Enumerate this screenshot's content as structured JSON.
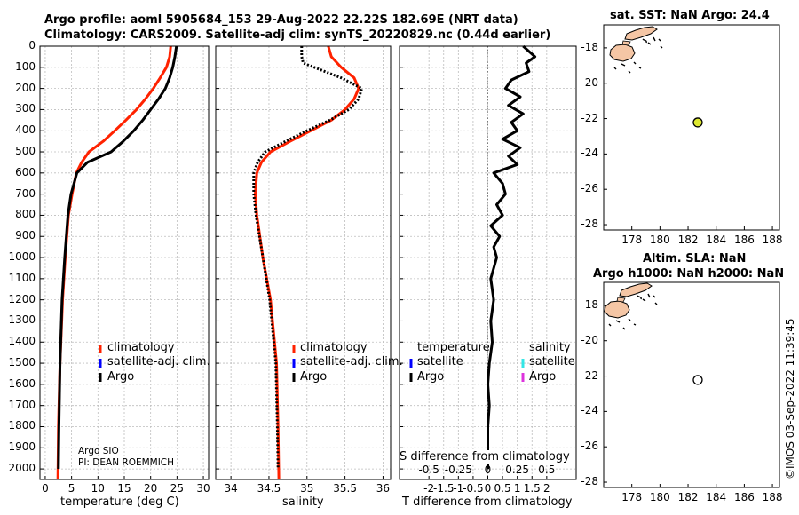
{
  "header": {
    "title_line1": "Argo profile: aoml 5905684_153 29-Aug-2022 22.22S 182.69E (NRT data)",
    "title_line2": "Climatology: CARS2009. Satellite-adj clim: synTS_20220829.nc (0.44d earlier)"
  },
  "colors": {
    "climatology": "#ff2200",
    "satellite": "#0000ff",
    "argo": "#000000",
    "sat_salinity": "#33e6e6",
    "argo_salinity": "#dd33dd",
    "land": "#f5c6a5",
    "sst_marker": "#dde830"
  },
  "depth_ticks": [
    "0",
    "100",
    "200",
    "300",
    "400",
    "500",
    "600",
    "700",
    "800",
    "900",
    "1000",
    "1100",
    "1200",
    "1300",
    "1400",
    "1500",
    "1600",
    "1700",
    "1800",
    "1900",
    "2000"
  ],
  "legend_labels": {
    "climatology": "climatology",
    "satellite": "satellite-adj. clim.",
    "argo": "Argo"
  },
  "diff_legend": {
    "temperature": "temperature",
    "salinity": "salinity",
    "satellite": "satellite",
    "argo": "Argo"
  },
  "credits": {
    "line1": "Argo SIO",
    "line2": "PI: DEAN ROEMMICH"
  },
  "watermark": "©IMOS 03-Sep-2022 11:39:45",
  "chart_data": [
    {
      "type": "line",
      "xlabel": "temperature (deg C)",
      "xlim": [
        -1,
        31
      ],
      "xticks": [
        "0",
        "5",
        "10",
        "15",
        "20",
        "25",
        "30"
      ],
      "ylim": [
        0,
        2050
      ],
      "series": [
        {
          "name": "climatology",
          "x": [
            23.8,
            23.6,
            23.0,
            21.8,
            20.5,
            19.0,
            17.3,
            15.3,
            13.2,
            11.0,
            8.3,
            6.9,
            5.9,
            5.1,
            4.4,
            3.8,
            3.3,
            2.8,
            2.5,
            2.4
          ],
          "y": [
            0,
            50,
            100,
            150,
            200,
            250,
            300,
            350,
            400,
            450,
            500,
            550,
            600,
            700,
            800,
            1000,
            1200,
            1500,
            1800,
            2050
          ]
        },
        {
          "name": "Argo",
          "x": [
            24.9,
            24.6,
            24.2,
            23.6,
            22.8,
            21.5,
            20.0,
            18.5,
            16.8,
            14.8,
            12.5,
            8.0,
            6.0,
            4.9,
            4.3,
            3.7,
            3.2,
            2.8,
            2.6,
            2.5
          ],
          "y": [
            0,
            50,
            100,
            150,
            200,
            250,
            300,
            350,
            400,
            450,
            500,
            550,
            600,
            700,
            800,
            1000,
            1200,
            1500,
            1800,
            2000
          ]
        }
      ]
    },
    {
      "type": "line",
      "xlabel": "salinity",
      "xlim": [
        33.8,
        36.1
      ],
      "xticks": [
        "34",
        "34.5",
        "35",
        "35.5",
        "36"
      ],
      "ylim": [
        0,
        2050
      ],
      "series": [
        {
          "name": "climatology",
          "x": [
            35.28,
            35.32,
            35.45,
            35.62,
            35.68,
            35.62,
            35.5,
            35.32,
            35.05,
            34.78,
            34.52,
            34.4,
            34.34,
            34.32,
            34.34,
            34.42,
            34.52,
            34.6,
            34.62,
            34.63
          ],
          "y": [
            0,
            50,
            100,
            150,
            200,
            250,
            300,
            350,
            400,
            450,
            500,
            550,
            600,
            700,
            800,
            1000,
            1200,
            1500,
            1800,
            2050
          ]
        },
        {
          "name": "Argo",
          "x": [
            34.93,
            34.93,
            34.95,
            35.45,
            35.72,
            35.68,
            35.55,
            35.3,
            35.0,
            34.72,
            34.45,
            34.35,
            34.3,
            34.3,
            34.33,
            34.42,
            34.51,
            34.59,
            34.61,
            34.62
          ],
          "y": [
            0,
            50,
            80,
            150,
            200,
            250,
            300,
            350,
            400,
            450,
            500,
            550,
            600,
            700,
            800,
            1000,
            1200,
            1500,
            1800,
            2000
          ]
        }
      ]
    },
    {
      "type": "line",
      "xlabel": "T difference from climatology",
      "xlabel_top": "S difference from climatology",
      "xlim": [
        -3,
        3
      ],
      "xticks": [
        "-2",
        "-1.5",
        "-1",
        "-0.5",
        "0",
        "0.5",
        "1",
        "1.5",
        "2"
      ],
      "xticks_top": [
        "-0.5",
        "-0.25",
        "0",
        "0.25",
        "0.5"
      ],
      "ylim": [
        0,
        2050
      ],
      "series": [
        {
          "name": "Argo",
          "x": [
            1.2,
            1.6,
            1.3,
            1.4,
            0.8,
            0.6,
            1.1,
            0.7,
            1.2,
            0.8,
            1.0,
            0.5,
            1.1,
            0.7,
            1.0,
            0.2,
            0.5,
            0.6,
            0.3,
            0.5,
            0.1,
            0.4,
            0.2,
            0.3,
            0.1,
            0.2,
            0.1,
            0.15,
            0.05,
            0.0,
            0.05,
            0.0,
            0.0
          ],
          "y": [
            0,
            50,
            80,
            120,
            160,
            200,
            240,
            280,
            320,
            360,
            400,
            440,
            480,
            520,
            560,
            600,
            650,
            700,
            750,
            800,
            850,
            900,
            950,
            1000,
            1100,
            1200,
            1300,
            1400,
            1500,
            1600,
            1700,
            1800,
            2000
          ]
        }
      ]
    },
    {
      "type": "scatter",
      "title": "sat. SST: NaN Argo: 24.4",
      "xlim": [
        176,
        188.5
      ],
      "ylim": [
        -28.3,
        -16.7
      ],
      "xticks": [
        "178",
        "180",
        "182",
        "184",
        "186",
        "188"
      ],
      "yticks": [
        "-18",
        "-20",
        "-22",
        "-24",
        "-26",
        "-28"
      ],
      "points": [
        {
          "x": 182.69,
          "y": -22.22,
          "label": "Argo"
        }
      ]
    },
    {
      "type": "scatter",
      "title": "Altim. SLA: NaN",
      "title2": "Argo h1000: NaN h2000: NaN",
      "xlim": [
        176,
        188.5
      ],
      "ylim": [
        -28.3,
        -16.7
      ],
      "xticks": [
        "178",
        "180",
        "182",
        "184",
        "186",
        "188"
      ],
      "yticks": [
        "-18",
        "-20",
        "-22",
        "-24",
        "-26",
        "-28"
      ],
      "points": [
        {
          "x": 182.69,
          "y": -22.22,
          "label": "Argo"
        }
      ]
    }
  ]
}
